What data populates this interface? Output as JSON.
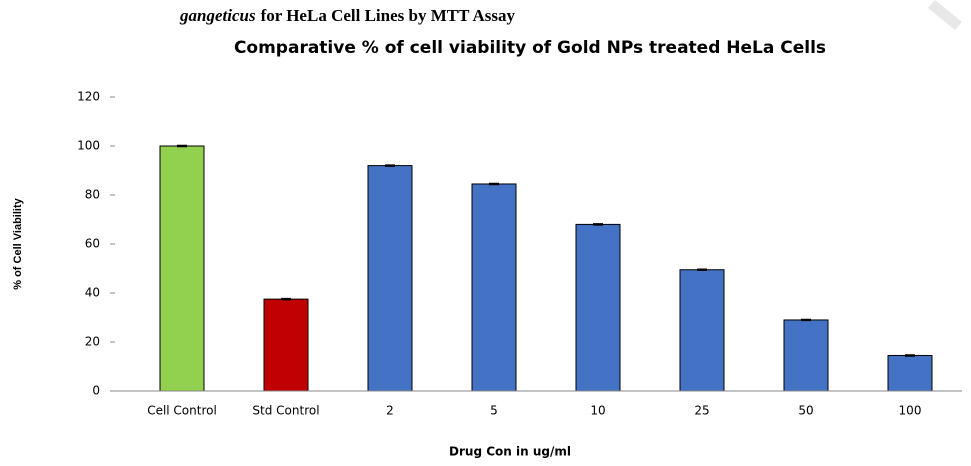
{
  "chart_data": {
    "type": "bar",
    "caption": [
      "gangeticus",
      "for HeLa Cell Lines by MTT Assay"
    ],
    "title": "Comparative % of cell viability of Gold NPs treated HeLa Cells",
    "y_label": "% of Cell Viability",
    "x_label": "Drug Con in ug/ml",
    "categories": [
      "Cell Control",
      "Std Control",
      "2",
      "5",
      "10",
      "25",
      "50",
      "100"
    ],
    "values": [
      100,
      37.5,
      92,
      84.5,
      68,
      49.5,
      29,
      14.5
    ],
    "errors": [
      0.3,
      0.3,
      0.3,
      0.3,
      0.3,
      0.3,
      0.3,
      0.3
    ],
    "colors": [
      "#92d050",
      "#c00000",
      "#4472c4",
      "#4472c4",
      "#4472c4",
      "#4472c4",
      "#4472c4",
      "#4472c4"
    ],
    "ylim": [
      0,
      120
    ],
    "yticks": [
      0,
      20,
      40,
      60,
      80,
      100,
      120
    ],
    "grid": false
  }
}
